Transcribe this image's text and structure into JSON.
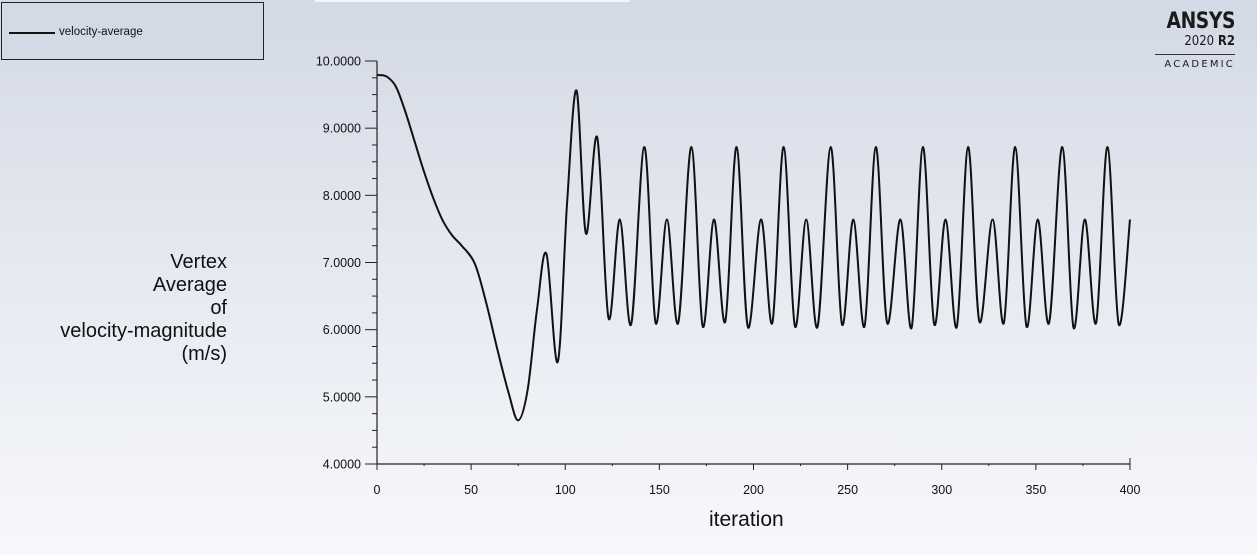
{
  "window": {
    "logo": {
      "brand": "ANSYS",
      "version_number": "2020",
      "version_release": "R2",
      "edition": "ACADEMIC"
    }
  },
  "legend": {
    "entries": [
      {
        "label": "velocity-average",
        "color": "#111111"
      }
    ]
  },
  "axes": {
    "ylabel_lines": [
      "Vertex",
      "Average",
      "of",
      "velocity-magnitude",
      "(m/s)"
    ],
    "xlabel": "iteration"
  },
  "chart_data": {
    "type": "line",
    "title": "",
    "xlabel": "iteration",
    "ylabel": "Vertex Average of velocity-magnitude (m/s)",
    "xlim": [
      0,
      400
    ],
    "ylim": [
      4.0,
      10.0
    ],
    "xticks": [
      "0",
      "50",
      "100",
      "150",
      "200",
      "250",
      "300",
      "350",
      "400"
    ],
    "yticks": [
      "4.0000",
      "5.0000",
      "6.0000",
      "7.0000",
      "8.0000",
      "9.0000",
      "10.0000"
    ],
    "grid": false,
    "legend_position": "top-left",
    "series": [
      {
        "name": "velocity-average",
        "color": "#111111",
        "x": [
          0,
          5,
          10,
          15,
          20,
          25,
          30,
          35,
          40,
          45,
          52,
          58,
          64,
          70,
          75,
          80,
          85,
          90,
          96,
          101,
          106,
          111,
          117,
          123,
          129,
          135,
          142,
          148,
          154,
          160,
          167,
          173,
          179,
          185,
          191,
          197,
          204,
          210,
          216,
          222,
          228,
          234,
          241,
          247,
          253,
          259,
          265,
          271,
          278,
          284,
          290,
          296,
          302,
          308,
          314,
          320,
          327,
          333,
          339,
          345,
          351,
          357,
          364,
          370,
          376,
          382,
          388,
          394,
          400
        ],
        "y": [
          9.79,
          9.77,
          9.62,
          9.25,
          8.8,
          8.35,
          7.95,
          7.62,
          7.4,
          7.25,
          6.98,
          6.4,
          5.7,
          5.05,
          4.65,
          5.1,
          6.3,
          7.13,
          5.52,
          7.9,
          9.56,
          7.43,
          8.86,
          6.17,
          7.64,
          6.08,
          8.72,
          6.1,
          7.64,
          6.1,
          8.72,
          6.05,
          7.64,
          6.12,
          8.72,
          6.04,
          7.64,
          6.1,
          8.72,
          6.05,
          7.64,
          6.04,
          8.72,
          6.08,
          7.64,
          6.05,
          8.72,
          6.1,
          7.64,
          6.03,
          8.72,
          6.08,
          7.64,
          6.04,
          8.72,
          6.12,
          7.64,
          6.1,
          8.72,
          6.05,
          7.64,
          6.1,
          8.72,
          6.03,
          7.64,
          6.1,
          8.72,
          6.08,
          7.64
        ]
      }
    ]
  }
}
